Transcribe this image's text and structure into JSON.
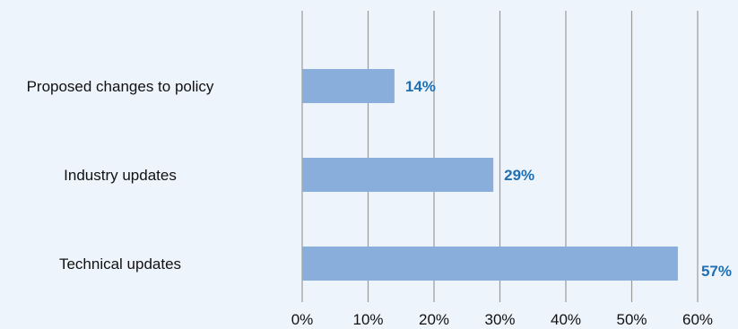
{
  "chart_data": {
    "type": "bar",
    "orientation": "horizontal",
    "categories": [
      "Proposed changes to policy",
      "Industry updates",
      "Technical updates"
    ],
    "values": [
      14,
      29,
      57
    ],
    "value_labels": [
      "14%",
      "29%",
      "57%"
    ],
    "xlim": [
      0,
      60
    ],
    "x_ticks": [
      0,
      10,
      20,
      30,
      40,
      50,
      60
    ],
    "x_tick_labels": [
      "0%",
      "10%",
      "20%",
      "30%",
      "40%",
      "50%",
      "60%"
    ],
    "title": "",
    "xlabel": "",
    "ylabel": "",
    "grid": "vertical",
    "legend": "none",
    "colors": {
      "bar": "#8aaedc",
      "data_label": "#1f6fb2",
      "grid": "#9a9a9a",
      "background": "#eef4fb",
      "text": "#111111"
    }
  }
}
